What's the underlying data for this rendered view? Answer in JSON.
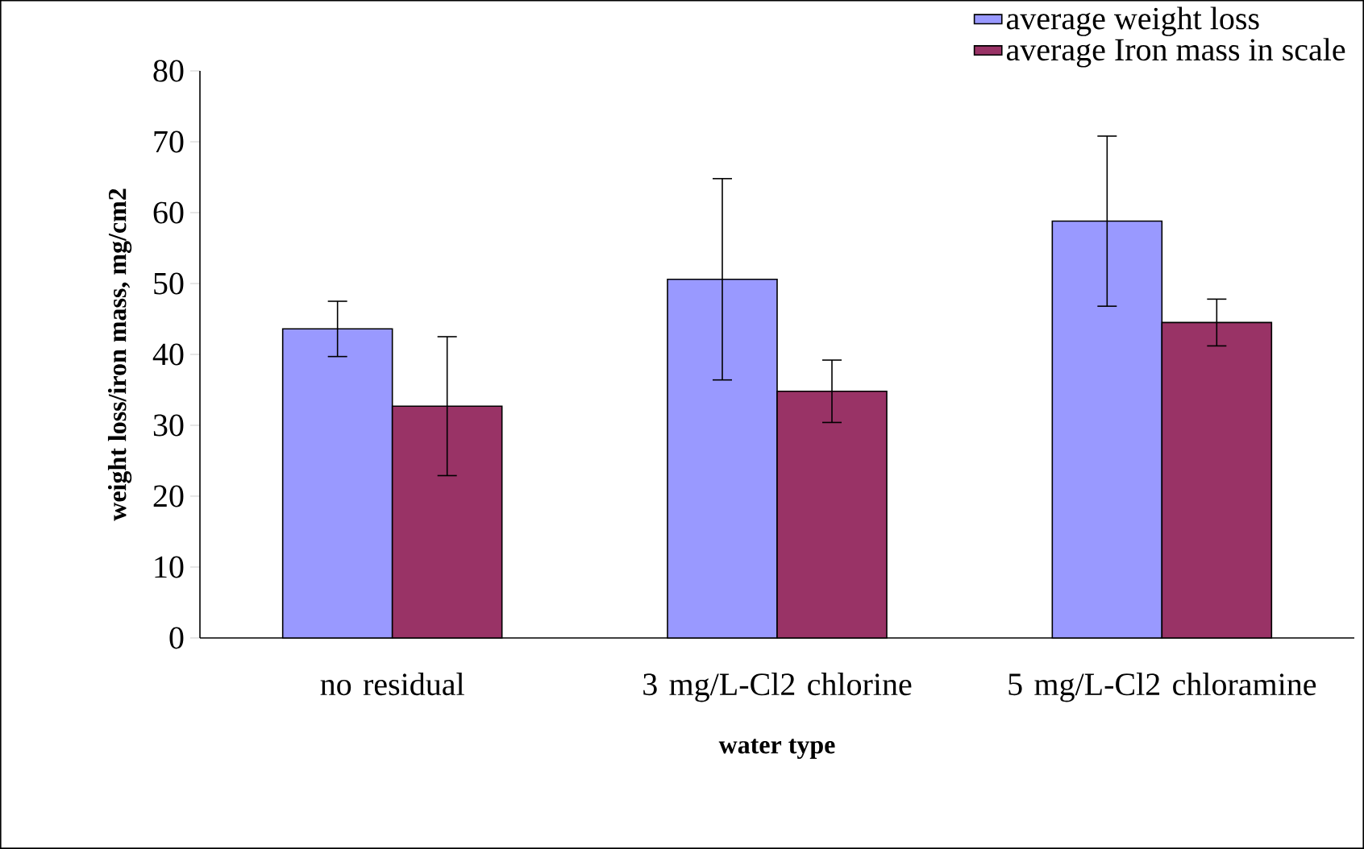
{
  "chart_data": {
    "type": "bar",
    "categories": [
      "no residual",
      "3 mg/L-Cl2 chlorine",
      "5 mg/L-Cl2 chloramine"
    ],
    "xlabel": "water type",
    "ylabel": "weight loss/iron mass, mg/cm2",
    "series": [
      {
        "name": "average weight loss",
        "color": "#9999ff",
        "values": [
          43.6,
          50.6,
          58.8
        ],
        "errors": [
          3.9,
          14.2,
          12
        ]
      },
      {
        "name": "average Iron mass in scale",
        "color": "#993366",
        "values": [
          32.7,
          34.8,
          44.5
        ],
        "errors": [
          9.8,
          4.4,
          3.3
        ]
      }
    ],
    "ylim": [
      0,
      80
    ],
    "yticks": [
      0,
      10,
      20,
      30,
      40,
      50,
      60,
      70,
      80
    ],
    "legend": "top right",
    "grid": false
  }
}
